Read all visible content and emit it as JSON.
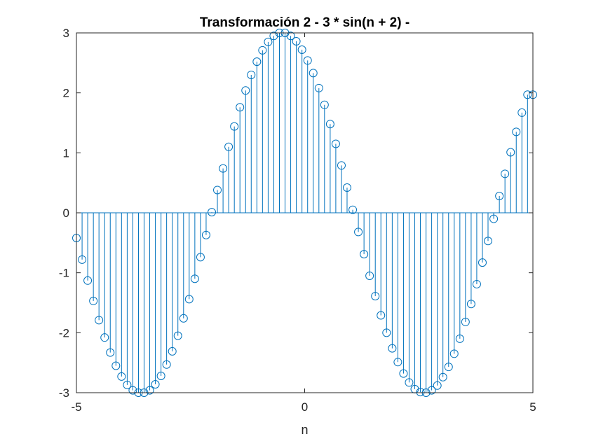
{
  "chart_data": {
    "type": "stem",
    "title": "Transformación 2 - 3 * sin(n + 2) -",
    "xlabel": "n",
    "ylabel": "",
    "xlim": [
      -5,
      5
    ],
    "ylim": [
      -3,
      3
    ],
    "xticks": [
      -5,
      0,
      5
    ],
    "yticks": [
      -3,
      -2,
      -1,
      0,
      1,
      2,
      3
    ],
    "xtick_labels": [
      "-5",
      "0",
      "5"
    ],
    "ytick_labels": [
      "-3",
      "-2",
      "-1",
      "0",
      "1",
      "2",
      "3"
    ],
    "grid": false,
    "legend": "none",
    "marker": "open-circle",
    "series": [
      {
        "color": "#0072BD",
        "x": [
          -5.0,
          -4.876,
          -4.753,
          -4.629,
          -4.506,
          -4.382,
          -4.259,
          -4.135,
          -4.012,
          -3.888,
          -3.765,
          -3.641,
          -3.518,
          -3.394,
          -3.271,
          -3.147,
          -3.024,
          -2.9,
          -2.777,
          -2.653,
          -2.53,
          -2.406,
          -2.282,
          -2.159,
          -2.035,
          -1.912,
          -1.788,
          -1.665,
          -1.541,
          -1.418,
          -1.294,
          -1.171,
          -1.047,
          -0.924,
          -0.8,
          -0.677,
          -0.553,
          -0.43,
          -0.306,
          -0.183,
          -0.059,
          0.065,
          0.188,
          0.312,
          0.435,
          0.559,
          0.682,
          0.806,
          0.929,
          1.053,
          1.176,
          1.3,
          1.423,
          1.547,
          1.67,
          1.794,
          1.918,
          2.041,
          2.165,
          2.288,
          2.412,
          2.535,
          2.659,
          2.782,
          2.906,
          3.029,
          3.153,
          3.276,
          3.4,
          3.523,
          3.647,
          3.77,
          3.894,
          4.017,
          4.141,
          4.265,
          4.388,
          4.512,
          4.635,
          4.759,
          4.882,
          5.0
        ],
        "y": [
          -0.42,
          -0.78,
          -1.13,
          -1.47,
          -1.79,
          -2.08,
          -2.33,
          -2.55,
          -2.73,
          -2.87,
          -2.96,
          -3.0,
          -3.0,
          -2.96,
          -2.86,
          -2.72,
          -2.53,
          -2.31,
          -2.05,
          -1.76,
          -1.44,
          -1.1,
          -0.74,
          -0.37,
          0.01,
          0.38,
          0.74,
          1.1,
          1.44,
          1.76,
          2.04,
          2.3,
          2.52,
          2.71,
          2.85,
          2.95,
          3.0,
          3.0,
          2.95,
          2.86,
          2.72,
          2.54,
          2.33,
          2.08,
          1.8,
          1.48,
          1.15,
          0.79,
          0.42,
          0.05,
          -0.32,
          -0.69,
          -1.05,
          -1.39,
          -1.71,
          -2.0,
          -2.26,
          -2.49,
          -2.68,
          -2.83,
          -2.94,
          -2.99,
          -3.0,
          -2.96,
          -2.88,
          -2.74,
          -2.57,
          -2.35,
          -2.1,
          -1.82,
          -1.52,
          -1.19,
          -0.83,
          -0.47,
          -0.1,
          0.28,
          0.65,
          1.01,
          1.35,
          1.67,
          1.97,
          1.97
        ]
      }
    ]
  }
}
